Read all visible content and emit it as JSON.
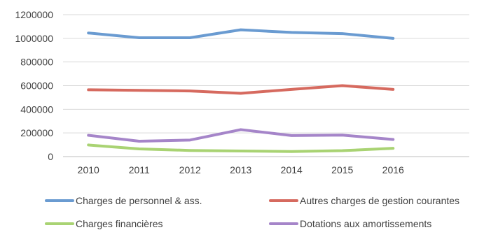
{
  "chart_data": {
    "type": "line",
    "x": [
      "2010",
      "2011",
      "2012",
      "2013",
      "2014",
      "2015",
      "2016"
    ],
    "ylim": [
      0,
      1200000
    ],
    "yticks": [
      "0",
      "200000",
      "400000",
      "600000",
      "800000",
      "1000000",
      "1200000"
    ],
    "grid": true,
    "legend_position": "bottom",
    "series": [
      {
        "name": "Charges de personnel & ass.",
        "color": "#6a9bd1",
        "values": [
          1045000,
          1005000,
          1005000,
          1072000,
          1050000,
          1040000,
          1000000
        ]
      },
      {
        "name": "Autres charges de gestion courantes",
        "color": "#d66a5f",
        "values": [
          565000,
          560000,
          555000,
          535000,
          568000,
          600000,
          568000
        ]
      },
      {
        "name": "Charges financières",
        "color": "#a9d373",
        "values": [
          98000,
          65000,
          52000,
          47000,
          43000,
          50000,
          70000
        ]
      },
      {
        "name": "Dotations aux amortissements",
        "color": "#a585c9",
        "values": [
          180000,
          130000,
          140000,
          228000,
          178000,
          182000,
          145000
        ]
      }
    ]
  }
}
